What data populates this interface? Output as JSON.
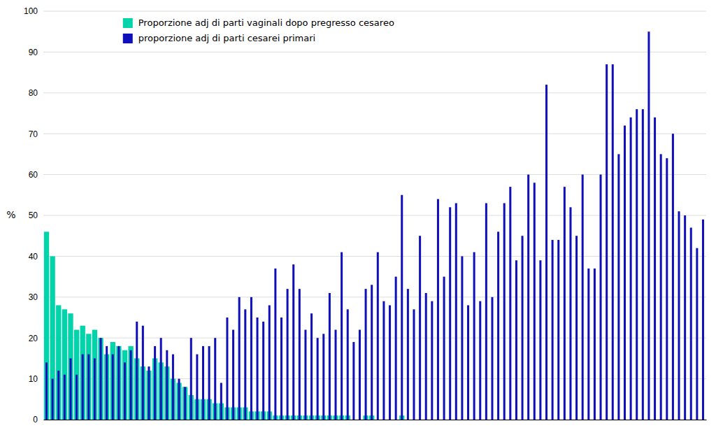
{
  "chart_data": {
    "type": "bar",
    "ylabel": "%",
    "categories": [
      null,
      null,
      null,
      null,
      null,
      null,
      null,
      null,
      null,
      null,
      null,
      null,
      null,
      null,
      null,
      null,
      null,
      null,
      null,
      null,
      null,
      null,
      null,
      null,
      null,
      null,
      null,
      null,
      null,
      null,
      null,
      null,
      null,
      null,
      null,
      null,
      null,
      null,
      null,
      null,
      null,
      null,
      null,
      null,
      null,
      null,
      null,
      null,
      null,
      null,
      null,
      null,
      null,
      null,
      null,
      null,
      null,
      null,
      null,
      null,
      null,
      null,
      null,
      null,
      null,
      null,
      null,
      null,
      null,
      null,
      null,
      null,
      null,
      null,
      null,
      null,
      null,
      null,
      null,
      null,
      null,
      null,
      null,
      null,
      null,
      null,
      null,
      null,
      null,
      null,
      null,
      null,
      null,
      null,
      null,
      null,
      null,
      null,
      null,
      null,
      null,
      null,
      null,
      null,
      null,
      null,
      null,
      null,
      null,
      null
    ],
    "series": [
      {
        "name": "Proporzione adj di parti vaginali dopo pregresso cesareo",
        "color": "#00D4AA",
        "values": [
          46,
          40,
          28,
          27,
          26,
          22,
          23,
          21,
          22,
          20,
          16,
          19,
          18,
          17,
          18,
          15,
          13,
          12,
          15,
          14,
          13,
          10,
          9,
          8,
          6,
          5,
          5,
          5,
          4,
          4,
          3,
          3,
          3,
          3,
          2,
          2,
          2,
          2,
          1,
          1,
          1,
          1,
          1,
          1,
          1,
          1,
          1,
          1,
          1,
          1,
          1,
          0,
          0,
          1,
          1,
          0,
          0,
          0,
          0,
          1,
          0,
          0,
          0,
          0,
          0,
          0,
          0,
          0,
          0,
          0,
          0,
          0,
          0,
          0,
          0,
          0,
          0,
          0,
          0,
          0,
          0,
          0,
          0,
          0,
          0,
          0,
          0,
          0,
          0,
          0,
          0,
          0,
          0,
          0,
          0,
          0,
          0,
          0,
          0,
          0,
          0,
          0,
          0,
          0,
          0,
          0,
          0,
          0,
          0,
          0
        ]
      },
      {
        "name": "proporzione adj di parti cesarei primari",
        "color": "#1010BB",
        "values": [
          14,
          10,
          12,
          11,
          15,
          11,
          16,
          16,
          15,
          20,
          18,
          16,
          18,
          14,
          17,
          24,
          23,
          13,
          18,
          20,
          17,
          16,
          10,
          8,
          20,
          16,
          18,
          18,
          20,
          9,
          25,
          22,
          30,
          27,
          30,
          25,
          24,
          28,
          37,
          25,
          32,
          38,
          32,
          22,
          26,
          20,
          21,
          31,
          22,
          41,
          27,
          19,
          22,
          32,
          33,
          41,
          29,
          28,
          35,
          55,
          32,
          27,
          45,
          31,
          29,
          54,
          35,
          52,
          53,
          40,
          28,
          41,
          29,
          53,
          30,
          46,
          53,
          57,
          39,
          45,
          60,
          58,
          39,
          82,
          44,
          44,
          57,
          52,
          45,
          60,
          37,
          37,
          60,
          87,
          87,
          65,
          72,
          74,
          76,
          76,
          95,
          74,
          65,
          64,
          70,
          51,
          50,
          47,
          42,
          49
        ]
      }
    ],
    "ylim": [
      0,
      100
    ],
    "yticks": [
      0,
      10,
      20,
      30,
      40,
      50,
      60,
      70,
      80,
      90,
      100
    ],
    "grid": true,
    "legend": "upper left",
    "tick_labels": "y"
  }
}
